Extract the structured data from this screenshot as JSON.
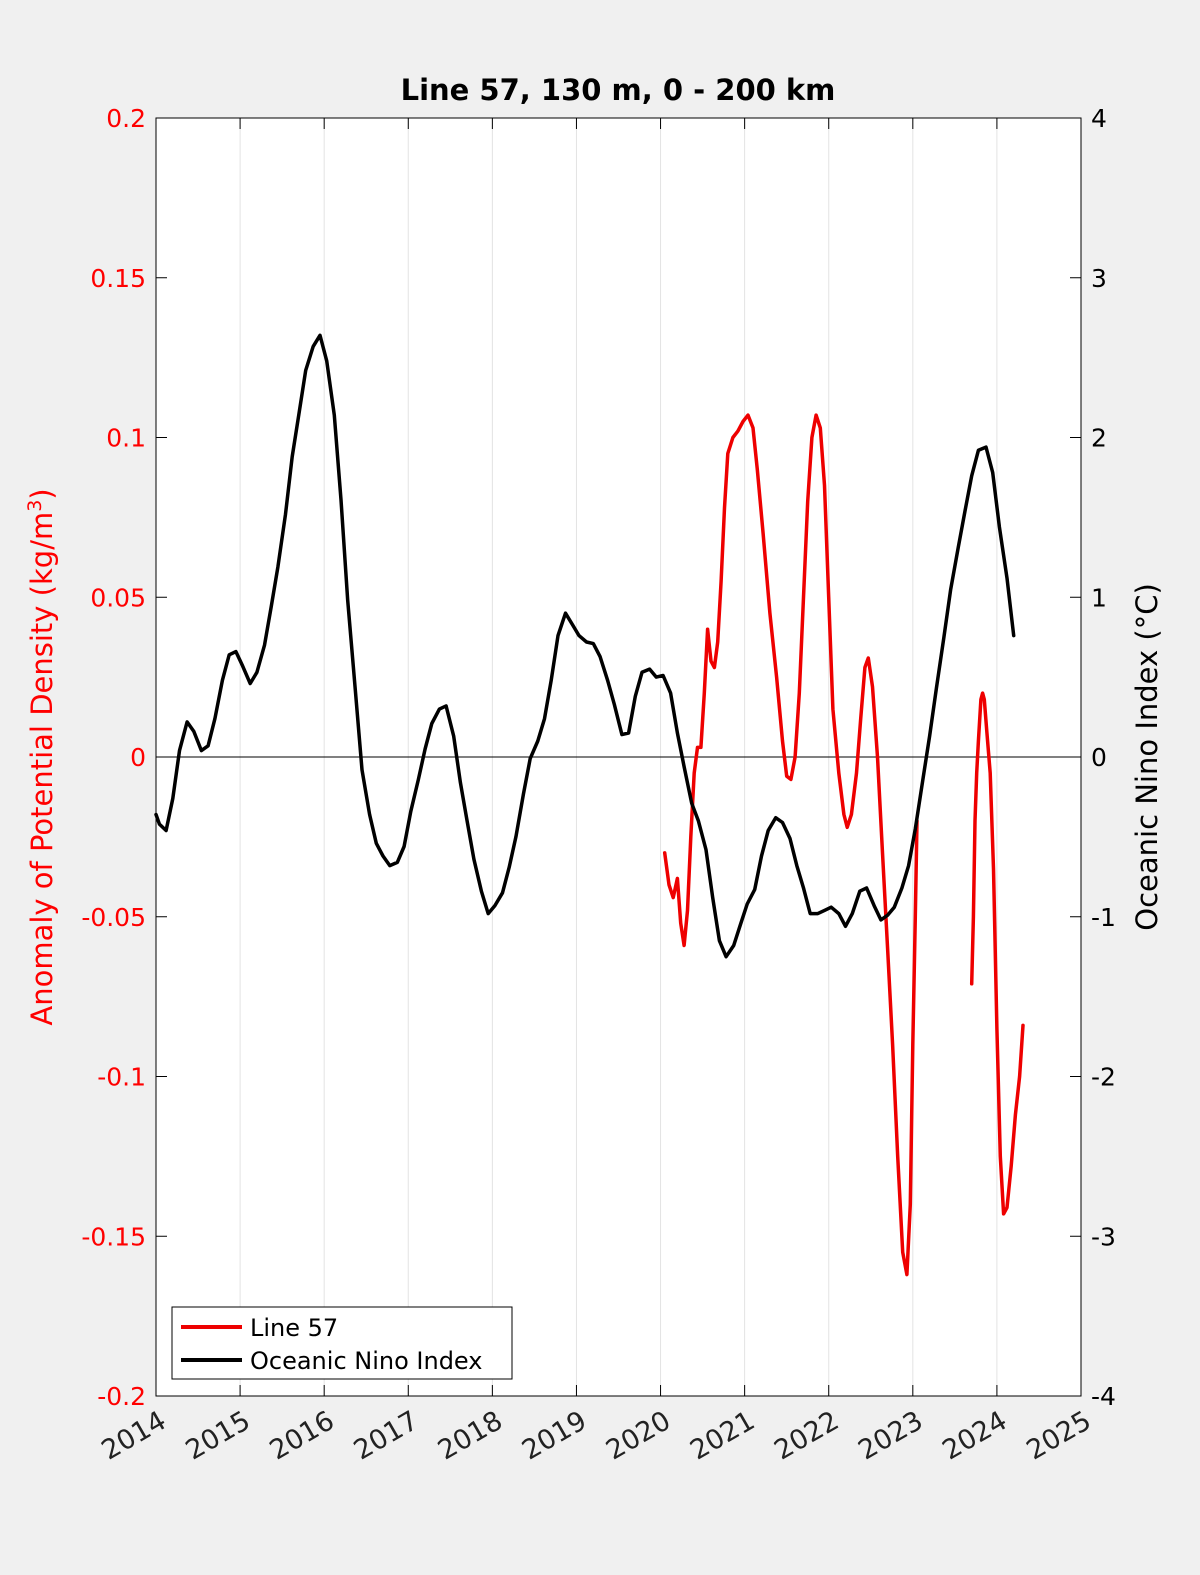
{
  "chart_data": {
    "type": "line",
    "title": "Line 57, 130 m, 0 - 200 km",
    "xlabel": "",
    "ylabel_left": "Anomaly of Potential Density (kg/m3)",
    "ylabel_left_main": "Anomaly of Potential Density (kg/m",
    "ylabel_left_sup": "3",
    "ylabel_left_close": ")",
    "ylabel_right": "Oceanic Nino Index (°C)",
    "xlim": [
      2014,
      2025
    ],
    "ylim_left": [
      -0.2,
      0.2
    ],
    "ylim_right": [
      -4,
      4
    ],
    "x_ticks": [
      "2014",
      "2015",
      "2016",
      "2017",
      "2018",
      "2019",
      "2020",
      "2021",
      "2022",
      "2023",
      "2024",
      "2025"
    ],
    "y_left_ticks": [
      "0.2",
      "0.15",
      "0.1",
      "0.05",
      "0",
      "-0.05",
      "-0.1",
      "-0.15",
      "-0.2"
    ],
    "y_right_ticks": [
      "4",
      "3",
      "2",
      "1",
      "0",
      "-1",
      "-2",
      "-3",
      "-4"
    ],
    "grid": "vertical",
    "zero_line": true,
    "legend_position": "bottom-left",
    "colors": {
      "left_axis": "#ff0000",
      "line57": "#ee0000",
      "oni": "#000000",
      "plot_bg": "#ffffff",
      "figure_bg": "#f0f0f0"
    },
    "series": [
      {
        "name": "Line 57",
        "axis": "left",
        "segments": [
          [
            [
              2020.05,
              -0.03
            ],
            [
              2020.1,
              -0.04
            ],
            [
              2020.15,
              -0.044
            ],
            [
              2020.2,
              -0.038
            ],
            [
              2020.24,
              -0.052
            ],
            [
              2020.28,
              -0.059
            ],
            [
              2020.32,
              -0.048
            ],
            [
              2020.36,
              -0.025
            ],
            [
              2020.4,
              -0.005
            ],
            [
              2020.44,
              0.003
            ],
            [
              2020.48,
              0.003
            ],
            [
              2020.52,
              0.02
            ],
            [
              2020.56,
              0.04
            ],
            [
              2020.6,
              0.03
            ],
            [
              2020.64,
              0.028
            ],
            [
              2020.68,
              0.036
            ],
            [
              2020.72,
              0.055
            ],
            [
              2020.76,
              0.078
            ],
            [
              2020.8,
              0.095
            ],
            [
              2020.86,
              0.1
            ],
            [
              2020.92,
              0.102
            ],
            [
              2020.98,
              0.105
            ],
            [
              2021.04,
              0.107
            ],
            [
              2021.1,
              0.103
            ],
            [
              2021.15,
              0.09
            ],
            [
              2021.22,
              0.07
            ],
            [
              2021.3,
              0.045
            ],
            [
              2021.38,
              0.025
            ],
            [
              2021.45,
              0.005
            ],
            [
              2021.5,
              -0.006
            ],
            [
              2021.55,
              -0.007
            ],
            [
              2021.6,
              0.0
            ],
            [
              2021.65,
              0.02
            ],
            [
              2021.7,
              0.05
            ],
            [
              2021.75,
              0.08
            ],
            [
              2021.8,
              0.1
            ],
            [
              2021.85,
              0.107
            ],
            [
              2021.9,
              0.103
            ],
            [
              2021.95,
              0.085
            ],
            [
              2022.0,
              0.05
            ],
            [
              2022.05,
              0.015
            ],
            [
              2022.12,
              -0.005
            ],
            [
              2022.18,
              -0.018
            ],
            [
              2022.22,
              -0.022
            ],
            [
              2022.27,
              -0.018
            ],
            [
              2022.33,
              -0.005
            ],
            [
              2022.38,
              0.012
            ],
            [
              2022.43,
              0.028
            ],
            [
              2022.47,
              0.031
            ],
            [
              2022.52,
              0.022
            ],
            [
              2022.58,
              0.0
            ],
            [
              2022.64,
              -0.03
            ],
            [
              2022.7,
              -0.06
            ],
            [
              2022.76,
              -0.09
            ],
            [
              2022.82,
              -0.125
            ],
            [
              2022.88,
              -0.155
            ],
            [
              2022.93,
              -0.162
            ],
            [
              2022.97,
              -0.14
            ],
            [
              2023.0,
              -0.09
            ],
            [
              2023.03,
              -0.05
            ],
            [
              2023.05,
              -0.02
            ]
          ],
          [
            [
              2023.7,
              -0.071
            ],
            [
              2023.72,
              -0.05
            ],
            [
              2023.74,
              -0.02
            ],
            [
              2023.76,
              -0.005
            ],
            [
              2023.78,
              0.005
            ],
            [
              2023.81,
              0.018
            ],
            [
              2023.83,
              0.02
            ],
            [
              2023.85,
              0.018
            ],
            [
              2023.88,
              0.008
            ],
            [
              2023.92,
              -0.005
            ],
            [
              2023.96,
              -0.035
            ],
            [
              2024.0,
              -0.085
            ],
            [
              2024.04,
              -0.125
            ],
            [
              2024.08,
              -0.143
            ],
            [
              2024.12,
              -0.141
            ],
            [
              2024.17,
              -0.128
            ],
            [
              2024.22,
              -0.112
            ],
            [
              2024.27,
              -0.1
            ],
            [
              2024.31,
              -0.084
            ]
          ]
        ]
      },
      {
        "name": "Oceanic Nino Index",
        "axis": "right",
        "segments": [
          [
            [
              2014.0,
              -0.36
            ],
            [
              2014.04,
              -0.42
            ],
            [
              2014.12,
              -0.46
            ],
            [
              2014.2,
              -0.26
            ],
            [
              2014.28,
              0.04
            ],
            [
              2014.37,
              0.22
            ],
            [
              2014.45,
              0.16
            ],
            [
              2014.54,
              0.04
            ],
            [
              2014.62,
              0.07
            ],
            [
              2014.7,
              0.24
            ],
            [
              2014.79,
              0.48
            ],
            [
              2014.87,
              0.64
            ],
            [
              2014.95,
              0.66
            ],
            [
              2015.03,
              0.57
            ],
            [
              2015.12,
              0.46
            ],
            [
              2015.2,
              0.53
            ],
            [
              2015.29,
              0.7
            ],
            [
              2015.37,
              0.94
            ],
            [
              2015.45,
              1.19
            ],
            [
              2015.54,
              1.52
            ],
            [
              2015.62,
              1.88
            ],
            [
              2015.7,
              2.15
            ],
            [
              2015.78,
              2.42
            ],
            [
              2015.87,
              2.57
            ],
            [
              2015.95,
              2.64
            ],
            [
              2016.03,
              2.48
            ],
            [
              2016.12,
              2.14
            ],
            [
              2016.2,
              1.61
            ],
            [
              2016.28,
              0.98
            ],
            [
              2016.37,
              0.42
            ],
            [
              2016.45,
              -0.08
            ],
            [
              2016.54,
              -0.36
            ],
            [
              2016.62,
              -0.54
            ],
            [
              2016.7,
              -0.62
            ],
            [
              2016.78,
              -0.68
            ],
            [
              2016.87,
              -0.66
            ],
            [
              2016.95,
              -0.56
            ],
            [
              2017.03,
              -0.34
            ],
            [
              2017.12,
              -0.14
            ],
            [
              2017.2,
              0.05
            ],
            [
              2017.28,
              0.21
            ],
            [
              2017.37,
              0.3
            ],
            [
              2017.45,
              0.32
            ],
            [
              2017.54,
              0.13
            ],
            [
              2017.62,
              -0.16
            ],
            [
              2017.7,
              -0.4
            ],
            [
              2017.78,
              -0.64
            ],
            [
              2017.87,
              -0.84
            ],
            [
              2017.95,
              -0.98
            ],
            [
              2018.03,
              -0.93
            ],
            [
              2018.12,
              -0.85
            ],
            [
              2018.2,
              -0.69
            ],
            [
              2018.28,
              -0.5
            ],
            [
              2018.37,
              -0.23
            ],
            [
              2018.45,
              -0.01
            ],
            [
              2018.54,
              0.1
            ],
            [
              2018.62,
              0.24
            ],
            [
              2018.7,
              0.48
            ],
            [
              2018.78,
              0.76
            ],
            [
              2018.87,
              0.9
            ],
            [
              2018.95,
              0.83
            ],
            [
              2019.03,
              0.76
            ],
            [
              2019.12,
              0.72
            ],
            [
              2019.2,
              0.71
            ],
            [
              2019.28,
              0.63
            ],
            [
              2019.37,
              0.48
            ],
            [
              2019.45,
              0.33
            ],
            [
              2019.54,
              0.14
            ],
            [
              2019.62,
              0.15
            ],
            [
              2019.7,
              0.38
            ],
            [
              2019.78,
              0.53
            ],
            [
              2019.87,
              0.55
            ],
            [
              2019.95,
              0.5
            ],
            [
              2020.03,
              0.51
            ],
            [
              2020.12,
              0.4
            ],
            [
              2020.2,
              0.15
            ],
            [
              2020.28,
              -0.06
            ],
            [
              2020.37,
              -0.29
            ],
            [
              2020.45,
              -0.4
            ],
            [
              2020.54,
              -0.58
            ],
            [
              2020.62,
              -0.88
            ],
            [
              2020.7,
              -1.15
            ],
            [
              2020.78,
              -1.25
            ],
            [
              2020.87,
              -1.18
            ],
            [
              2020.95,
              -1.05
            ],
            [
              2021.03,
              -0.92
            ],
            [
              2021.12,
              -0.83
            ],
            [
              2021.2,
              -0.62
            ],
            [
              2021.28,
              -0.46
            ],
            [
              2021.37,
              -0.38
            ],
            [
              2021.45,
              -0.41
            ],
            [
              2021.54,
              -0.51
            ],
            [
              2021.62,
              -0.68
            ],
            [
              2021.7,
              -0.82
            ],
            [
              2021.78,
              -0.98
            ],
            [
              2021.87,
              -0.98
            ],
            [
              2021.95,
              -0.96
            ],
            [
              2022.03,
              -0.94
            ],
            [
              2022.12,
              -0.98
            ],
            [
              2022.2,
              -1.06
            ],
            [
              2022.28,
              -0.98
            ],
            [
              2022.37,
              -0.84
            ],
            [
              2022.45,
              -0.82
            ],
            [
              2022.54,
              -0.93
            ],
            [
              2022.62,
              -1.02
            ],
            [
              2022.7,
              -0.99
            ],
            [
              2022.78,
              -0.94
            ],
            [
              2022.87,
              -0.82
            ],
            [
              2022.95,
              -0.68
            ],
            [
              2023.03,
              -0.45
            ],
            [
              2023.12,
              -0.14
            ],
            [
              2023.2,
              0.13
            ],
            [
              2023.28,
              0.43
            ],
            [
              2023.37,
              0.75
            ],
            [
              2023.45,
              1.05
            ],
            [
              2023.54,
              1.31
            ],
            [
              2023.62,
              1.54
            ],
            [
              2023.7,
              1.76
            ],
            [
              2023.78,
              1.92
            ],
            [
              2023.87,
              1.94
            ],
            [
              2023.95,
              1.78
            ],
            [
              2024.03,
              1.44
            ],
            [
              2024.12,
              1.12
            ],
            [
              2024.2,
              0.76
            ]
          ]
        ]
      }
    ]
  }
}
